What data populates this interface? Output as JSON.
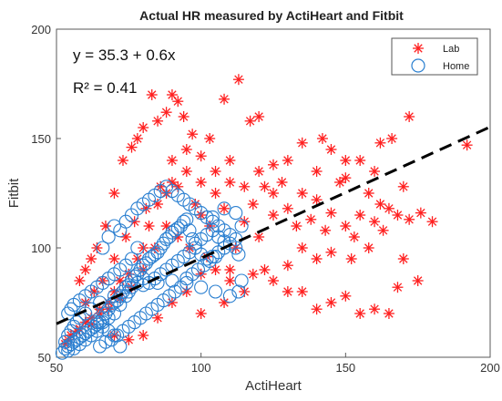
{
  "chart_data": {
    "type": "scatter",
    "title": "Actual HR measured by ActiHeart and Fitbit",
    "xlabel": "ActiHeart",
    "ylabel": "Fitbit",
    "xlim": [
      50,
      200
    ],
    "ylim": [
      50,
      200
    ],
    "xticks": [
      50,
      100,
      150,
      200
    ],
    "yticks": [
      50,
      100,
      150,
      200
    ],
    "grid": false,
    "legend_position": "top-right",
    "annotations": {
      "equation": "y = 35.3 + 0.6x",
      "r_squared": "R² = 0.41"
    },
    "fit_line": {
      "style": "dashed",
      "color": "#000000",
      "intercept": 35.3,
      "slope": 0.6,
      "x_range": [
        50,
        200
      ]
    },
    "series": [
      {
        "name": "Lab",
        "marker": "asterisk",
        "color": "#ff2020",
        "points": [
          [
            55,
            60
          ],
          [
            58,
            63
          ],
          [
            60,
            66
          ],
          [
            62,
            65
          ],
          [
            65,
            70
          ],
          [
            68,
            72
          ],
          [
            70,
            80
          ],
          [
            72,
            85
          ],
          [
            75,
            88
          ],
          [
            78,
            95
          ],
          [
            80,
            100
          ],
          [
            82,
            110
          ],
          [
            85,
            120
          ],
          [
            88,
            125
          ],
          [
            90,
            130
          ],
          [
            92,
            128
          ],
          [
            95,
            135
          ],
          [
            98,
            120
          ],
          [
            100,
            115
          ],
          [
            103,
            110
          ],
          [
            105,
            125
          ],
          [
            108,
            118
          ],
          [
            110,
            130
          ],
          [
            112,
            100
          ],
          [
            115,
            112
          ],
          [
            118,
            120
          ],
          [
            120,
            105
          ],
          [
            122,
            128
          ],
          [
            125,
            115
          ],
          [
            128,
            130
          ],
          [
            130,
            118
          ],
          [
            133,
            110
          ],
          [
            135,
            125
          ],
          [
            138,
            113
          ],
          [
            140,
            122
          ],
          [
            143,
            108
          ],
          [
            145,
            116
          ],
          [
            148,
            130
          ],
          [
            150,
            110
          ],
          [
            153,
            105
          ],
          [
            155,
            115
          ],
          [
            158,
            100
          ],
          [
            160,
            112
          ],
          [
            163,
            108
          ],
          [
            165,
            118
          ],
          [
            168,
            115
          ],
          [
            170,
            95
          ],
          [
            172,
            113
          ],
          [
            175,
            85
          ],
          [
            180,
            112
          ],
          [
            192,
            147
          ],
          [
            172,
            160
          ],
          [
            166,
            150
          ],
          [
            162,
            148
          ],
          [
            155,
            140
          ],
          [
            150,
            132
          ],
          [
            145,
            145
          ],
          [
            140,
            135
          ],
          [
            135,
            148
          ],
          [
            130,
            140
          ],
          [
            125,
            138
          ],
          [
            120,
            160
          ],
          [
            117,
            158
          ],
          [
            113,
            177
          ],
          [
            108,
            168
          ],
          [
            103,
            150
          ],
          [
            100,
            142
          ],
          [
            97,
            152
          ],
          [
            94,
            160
          ],
          [
            92,
            167
          ],
          [
            90,
            170
          ],
          [
            88,
            162
          ],
          [
            85,
            158
          ],
          [
            83,
            170
          ],
          [
            80,
            155
          ],
          [
            78,
            150
          ],
          [
            76,
            146
          ],
          [
            73,
            140
          ],
          [
            70,
            125
          ],
          [
            67,
            110
          ],
          [
            64,
            100
          ],
          [
            62,
            95
          ],
          [
            60,
            90
          ],
          [
            58,
            85
          ],
          [
            60,
            75
          ],
          [
            63,
            80
          ],
          [
            66,
            85
          ],
          [
            70,
            95
          ],
          [
            74,
            105
          ],
          [
            77,
            112
          ],
          [
            81,
            118
          ],
          [
            86,
            128
          ],
          [
            90,
            140
          ],
          [
            95,
            145
          ],
          [
            100,
            130
          ],
          [
            105,
            135
          ],
          [
            110,
            140
          ],
          [
            115,
            128
          ],
          [
            120,
            135
          ],
          [
            125,
            125
          ],
          [
            130,
            92
          ],
          [
            135,
            80
          ],
          [
            140,
            95
          ],
          [
            145,
            75
          ],
          [
            150,
            78
          ],
          [
            155,
            70
          ],
          [
            160,
            72
          ],
          [
            165,
            70
          ],
          [
            168,
            82
          ],
          [
            140,
            72
          ],
          [
            130,
            80
          ],
          [
            125,
            85
          ],
          [
            118,
            88
          ],
          [
            110,
            85
          ],
          [
            105,
            90
          ],
          [
            100,
            88
          ],
          [
            95,
            80
          ],
          [
            90,
            75
          ],
          [
            85,
            68
          ],
          [
            80,
            60
          ],
          [
            75,
            58
          ],
          [
            70,
            60
          ],
          [
            100,
            70
          ],
          [
            108,
            75
          ],
          [
            115,
            80
          ],
          [
            122,
            90
          ],
          [
            135,
            100
          ],
          [
            145,
            98
          ],
          [
            152,
            95
          ],
          [
            158,
            125
          ],
          [
            162,
            120
          ],
          [
            170,
            128
          ],
          [
            176,
            116
          ],
          [
            160,
            135
          ],
          [
            150,
            140
          ],
          [
            142,
            150
          ],
          [
            110,
            90
          ],
          [
            102,
            96
          ],
          [
            96,
            100
          ],
          [
            92,
            105
          ],
          [
            88,
            110
          ],
          [
            84,
            100
          ],
          [
            80,
            90
          ],
          [
            76,
            82
          ],
          [
            72,
            77
          ],
          [
            68,
            75
          ],
          [
            65,
            72
          ],
          [
            62,
            68
          ],
          [
            57,
            62
          ],
          [
            54,
            58
          ],
          [
            53,
            56
          ]
        ]
      },
      {
        "name": "Home",
        "marker": "circle",
        "color": "#2a7fd0",
        "points": [
          [
            52,
            52
          ],
          [
            53,
            54
          ],
          [
            54,
            55
          ],
          [
            55,
            56
          ],
          [
            56,
            57
          ],
          [
            57,
            58
          ],
          [
            58,
            59
          ],
          [
            59,
            60
          ],
          [
            60,
            61
          ],
          [
            61,
            62
          ],
          [
            62,
            63
          ],
          [
            63,
            64
          ],
          [
            64,
            65
          ],
          [
            65,
            66
          ],
          [
            66,
            68
          ],
          [
            67,
            70
          ],
          [
            68,
            72
          ],
          [
            69,
            74
          ],
          [
            70,
            75
          ],
          [
            71,
            76
          ],
          [
            72,
            78
          ],
          [
            73,
            80
          ],
          [
            74,
            82
          ],
          [
            75,
            83
          ],
          [
            76,
            85
          ],
          [
            77,
            87
          ],
          [
            78,
            88
          ],
          [
            79,
            90
          ],
          [
            80,
            92
          ],
          [
            81,
            93
          ],
          [
            82,
            95
          ],
          [
            83,
            96
          ],
          [
            84,
            97
          ],
          [
            85,
            98
          ],
          [
            86,
            100
          ],
          [
            87,
            102
          ],
          [
            88,
            104
          ],
          [
            89,
            105
          ],
          [
            90,
            107
          ],
          [
            91,
            108
          ],
          [
            92,
            109
          ],
          [
            93,
            110
          ],
          [
            94,
            112
          ],
          [
            95,
            113
          ],
          [
            96,
            108
          ],
          [
            97,
            104
          ],
          [
            98,
            100
          ],
          [
            100,
            97
          ],
          [
            102,
            95
          ],
          [
            104,
            96
          ],
          [
            106,
            98
          ],
          [
            108,
            100
          ],
          [
            110,
            102
          ],
          [
            112,
            100
          ],
          [
            113,
            97
          ],
          [
            114,
            85
          ],
          [
            113,
            80
          ],
          [
            110,
            78
          ],
          [
            105,
            80
          ],
          [
            100,
            82
          ],
          [
            95,
            84
          ],
          [
            90,
            85
          ],
          [
            85,
            84
          ],
          [
            80,
            83
          ],
          [
            75,
            80
          ],
          [
            70,
            78
          ],
          [
            65,
            75
          ],
          [
            62,
            72
          ],
          [
            60,
            70
          ],
          [
            58,
            68
          ],
          [
            57,
            66
          ],
          [
            56,
            64
          ],
          [
            55,
            62
          ],
          [
            54,
            60
          ],
          [
            53,
            57
          ],
          [
            72,
            55
          ],
          [
            70,
            60
          ],
          [
            68,
            62
          ],
          [
            66,
            64
          ],
          [
            64,
            66
          ],
          [
            66,
            100
          ],
          [
            68,
            105
          ],
          [
            70,
            110
          ],
          [
            72,
            108
          ],
          [
            74,
            112
          ],
          [
            76,
            115
          ],
          [
            78,
            118
          ],
          [
            80,
            120
          ],
          [
            82,
            122
          ],
          [
            84,
            124
          ],
          [
            86,
            126
          ],
          [
            88,
            128
          ],
          [
            90,
            126
          ],
          [
            92,
            124
          ],
          [
            94,
            122
          ],
          [
            96,
            120
          ],
          [
            98,
            118
          ],
          [
            100,
            116
          ],
          [
            102,
            114
          ],
          [
            104,
            112
          ],
          [
            106,
            110
          ],
          [
            108,
            108
          ],
          [
            110,
            106
          ],
          [
            112,
            104
          ],
          [
            114,
            110
          ],
          [
            112,
            116
          ],
          [
            108,
            118
          ],
          [
            104,
            114
          ],
          [
            78,
            100
          ],
          [
            76,
            95
          ],
          [
            74,
            92
          ],
          [
            72,
            90
          ],
          [
            70,
            88
          ],
          [
            68,
            86
          ],
          [
            66,
            84
          ],
          [
            64,
            82
          ],
          [
            62,
            80
          ],
          [
            60,
            78
          ],
          [
            58,
            76
          ],
          [
            56,
            74
          ],
          [
            55,
            72
          ],
          [
            54,
            70
          ],
          [
            88,
            90
          ],
          [
            90,
            92
          ],
          [
            92,
            94
          ],
          [
            94,
            96
          ],
          [
            96,
            98
          ],
          [
            98,
            102
          ],
          [
            100,
            104
          ],
          [
            102,
            106
          ],
          [
            104,
            108
          ],
          [
            106,
            105
          ],
          [
            108,
            103
          ],
          [
            86,
            88
          ],
          [
            84,
            86
          ],
          [
            82,
            84
          ],
          [
            80,
            86
          ],
          [
            78,
            84
          ],
          [
            76,
            82
          ],
          [
            74,
            78
          ],
          [
            72,
            74
          ],
          [
            70,
            70
          ],
          [
            68,
            68
          ],
          [
            66,
            66
          ],
          [
            64,
            62
          ],
          [
            62,
            60
          ],
          [
            60,
            58
          ],
          [
            58,
            56
          ],
          [
            56,
            54
          ],
          [
            54,
            53
          ],
          [
            65,
            55
          ],
          [
            67,
            57
          ],
          [
            69,
            58
          ],
          [
            71,
            60
          ],
          [
            73,
            62
          ],
          [
            75,
            64
          ],
          [
            77,
            66
          ],
          [
            79,
            68
          ],
          [
            81,
            70
          ],
          [
            83,
            72
          ],
          [
            85,
            74
          ],
          [
            87,
            76
          ],
          [
            89,
            78
          ],
          [
            91,
            80
          ],
          [
            93,
            82
          ],
          [
            95,
            86
          ],
          [
            97,
            88
          ],
          [
            99,
            90
          ],
          [
            101,
            92
          ],
          [
            103,
            94
          ],
          [
            105,
            96
          ]
        ]
      }
    ]
  }
}
